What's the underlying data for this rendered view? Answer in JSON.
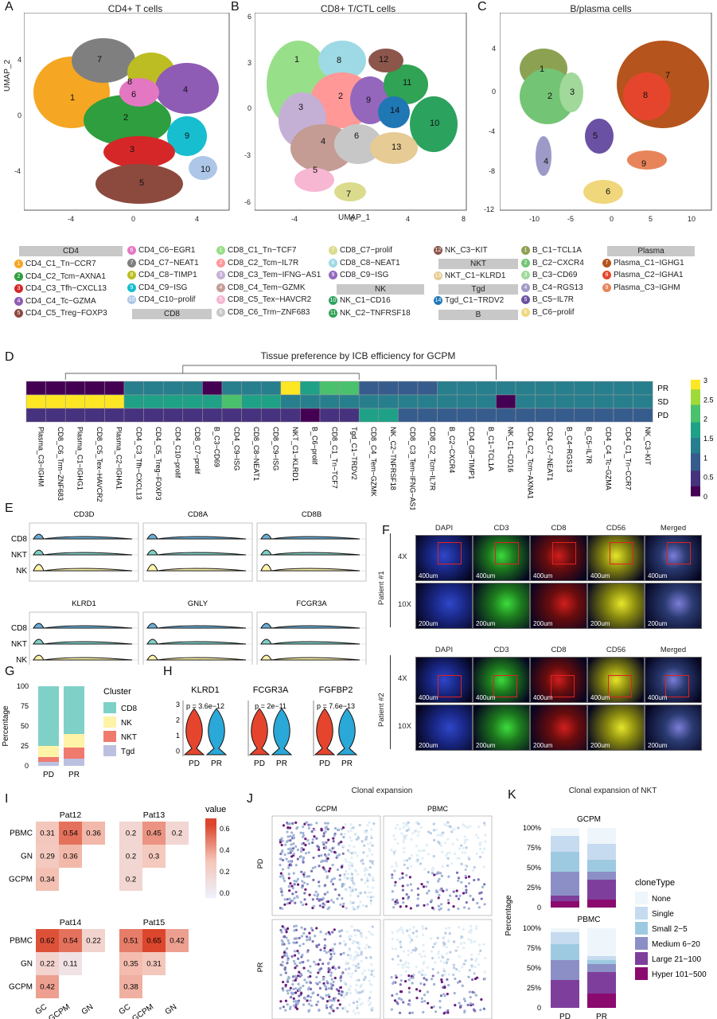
{
  "panels": {
    "A": {
      "label": "A",
      "title": "CD4+ T cells",
      "ylabel": "UMAP_2",
      "xticks": [
        "-4",
        "0",
        "4"
      ],
      "yticks": [
        "4",
        "0",
        "-4"
      ],
      "clusters": [
        "1",
        "2",
        "3",
        "4",
        "5",
        "6",
        "7",
        "8",
        "9",
        "10"
      ]
    },
    "B": {
      "label": "B",
      "title": "CD8+ T/CTL cells",
      "xlabel": "UMAP_1",
      "xticks": [
        "-4",
        "0",
        "4",
        "8"
      ],
      "yticks": [
        "6",
        "3",
        "0",
        "-3",
        "-6"
      ],
      "clusters": [
        "1",
        "2",
        "3",
        "4",
        "5",
        "6",
        "7",
        "8",
        "9",
        "10",
        "11",
        "12",
        "13",
        "14"
      ]
    },
    "C": {
      "label": "C",
      "title": "B/plasma cells",
      "xticks": [
        "-10",
        "-5",
        "0",
        "5",
        "10"
      ],
      "yticks": [
        "4",
        "0",
        "-4",
        "-8",
        "-12"
      ],
      "clusters": [
        "1",
        "2",
        "3",
        "4",
        "5",
        "6",
        "7",
        "8",
        "9"
      ]
    }
  },
  "legend": {
    "groups": [
      {
        "header": "CD4",
        "items": [
          {
            "n": "1",
            "label": "CD4_C1_Tn−CCR7",
            "color": "#f5a623"
          },
          {
            "n": "2",
            "label": "CD4_C2_Tcm−AXNA1",
            "color": "#2e9e3e"
          },
          {
            "n": "3",
            "label": "CD4_C3_Tfh−CXCL13",
            "color": "#d62728"
          },
          {
            "n": "4",
            "label": "CD4_C4_Tc−GZMA",
            "color": "#8e5bb5"
          },
          {
            "n": "5",
            "label": "CD4_C5_Treg−FOXP3",
            "color": "#8c4a3f"
          }
        ]
      },
      {
        "header": "",
        "items": [
          {
            "n": "6",
            "label": "CD4_C6−EGR1",
            "color": "#e377c2"
          },
          {
            "n": "7",
            "label": "CD4_C7−NEAT1",
            "color": "#7f7f7f"
          },
          {
            "n": "8",
            "label": "CD4_C8−TIMP1",
            "color": "#bcbd22"
          },
          {
            "n": "9",
            "label": "CD4_C9−ISG",
            "color": "#17becf"
          },
          {
            "n": "10",
            "label": "CD4_C10−prolif",
            "color": "#aec7e8"
          }
        ],
        "footer": "CD8"
      },
      {
        "header": "",
        "items": [
          {
            "n": "1",
            "label": "CD8_C1_Tn−TCF7",
            "color": "#98df8a"
          },
          {
            "n": "2",
            "label": "CD8_C2_Tcm−IL7R",
            "color": "#ff9896"
          },
          {
            "n": "3",
            "label": "CD8_C3_Tem−IFNG−AS1",
            "color": "#c5b0d5"
          },
          {
            "n": "4",
            "label": "CD8_C4_Tem−GZMK",
            "color": "#c49c94"
          },
          {
            "n": "5",
            "label": "CD8_C5_Tex−HAVCR2",
            "color": "#f7b6d2"
          },
          {
            "n": "6",
            "label": "CD8_C6_Trm−ZNF683",
            "color": "#c7c7c7"
          }
        ]
      },
      {
        "header": "",
        "items": [
          {
            "n": "7",
            "label": "CD8_C7−prolif",
            "color": "#dbdb8d"
          },
          {
            "n": "8",
            "label": "CD8_C8−NEAT1",
            "color": "#9edae5"
          },
          {
            "n": "9",
            "label": "CD8_C9−ISG",
            "color": "#9467bd"
          }
        ],
        "footer": "NK",
        "after": [
          {
            "n": "10",
            "label": "NK_C1−CD16",
            "color": "#2ca25f"
          },
          {
            "n": "11",
            "label": "NK_C2−TNFRSF18",
            "color": "#31a354"
          }
        ]
      },
      {
        "header": "",
        "items": [
          {
            "n": "12",
            "label": "NK_C3−KIT",
            "color": "#8c564b"
          }
        ],
        "mid": "NKT",
        "mid_items": [
          {
            "n": "13",
            "label": "NKT_C1−KLRD1",
            "color": "#e7cb94"
          }
        ],
        "mid2": "Tgd",
        "mid2_items": [
          {
            "n": "14",
            "label": "Tgd_C1−TRDV2",
            "color": "#1f77b4"
          }
        ],
        "footer": "B"
      },
      {
        "header": "",
        "items": [
          {
            "n": "1",
            "label": "B_C1−TCL1A",
            "color": "#8ca252"
          },
          {
            "n": "2",
            "label": "B_C2−CXCR4",
            "color": "#74c476"
          },
          {
            "n": "3",
            "label": "B_C3−CD69",
            "color": "#a1d99b"
          },
          {
            "n": "4",
            "label": "B_C4−RGS13",
            "color": "#9e9ac8"
          },
          {
            "n": "5",
            "label": "B_C5−IL7R",
            "color": "#6a51a3"
          },
          {
            "n": "6",
            "label": "B_C6−prolif",
            "color": "#f0d77b"
          }
        ]
      },
      {
        "header": "Plasma",
        "items": [
          {
            "n": "7",
            "label": "Plasma_C1−IGHG1",
            "color": "#b5541c"
          },
          {
            "n": "8",
            "label": "Plasma_C2−IGHA1",
            "color": "#e6452d"
          },
          {
            "n": "9",
            "label": "Plasma_C3−IGHM",
            "color": "#e8845a"
          }
        ]
      }
    ]
  },
  "panelD": {
    "label": "D",
    "title": "Tissue preference by ICB efficiency for GCPM",
    "rows": [
      "PR",
      "SD",
      "PD"
    ],
    "columns": [
      "Plasma_C3−IGHM",
      "CD8_C6_Trm−ZNF683",
      "Plasma_C1−IGHG1",
      "CD8_C5_Tex−HAVCR2",
      "Plasma_C2−IGHA1",
      "CD4_C3_Tfh−CXCL13",
      "CD4_C5_Treg−FOXP3",
      "CD4_C10−prolif",
      "CD8_C7−prolif",
      "B_C3−CD69",
      "CD4_C9−ISG",
      "CD8_C8−NEAT1",
      "CD8_C9−ISG",
      "NKT_C1−KLRD1",
      "B_C6−prolif",
      "CD8_C1_Tn−TCF7",
      "Tgd_C1−TRDV2",
      "CD8_C4_Tem−GZMK",
      "NK_C2−TNFRSF18",
      "CD8_C3_Tem−IFNG−AS1",
      "CD8_C2_Tcm−IL7R",
      "B_C2−CXCR4",
      "CD4_C8−TIMP1",
      "B_C1−TCL1A",
      "NK_C1−CD16",
      "CD4_C2_Tcm−AXNA1",
      "CD4_C7−NEAT1",
      "B_C4−RGS13",
      "B_C5−IL7R",
      "CD4_C4_Tc−GZMA",
      "CD4_C1_Tn−CCR7",
      "NK_C3−KIT"
    ],
    "values": [
      [
        0.1,
        0.1,
        0.1,
        0.1,
        0.1,
        1.3,
        1.3,
        1.3,
        1.3,
        0.1,
        1.3,
        1.3,
        1.3,
        3.0,
        1.7,
        2.0,
        2.0,
        1.0,
        1.0,
        1.0,
        1.0,
        1.2,
        1.2,
        1.2,
        1.2,
        1.3,
        1.3,
        1.3,
        1.3,
        1.3,
        1.3,
        1.3
      ],
      [
        3.0,
        3.0,
        3.0,
        3.0,
        3.0,
        1.5,
        1.5,
        1.5,
        1.5,
        1.7,
        2.3,
        1.7,
        1.7,
        1.2,
        1.2,
        1.2,
        1.2,
        1.2,
        1.2,
        1.2,
        1.2,
        1.2,
        1.2,
        1.2,
        0.1,
        1.2,
        1.2,
        1.2,
        1.2,
        1.2,
        1.2,
        1.2
      ],
      [
        0.6,
        0.6,
        0.6,
        0.6,
        0.6,
        0.6,
        0.6,
        0.6,
        0.6,
        0.6,
        0.6,
        0.6,
        0.6,
        0.6,
        0.1,
        0.6,
        0.6,
        1.7,
        1.7,
        0.8,
        0.8,
        0.8,
        0.8,
        0.8,
        0.8,
        0.8,
        0.8,
        0.8,
        0.8,
        0.8,
        0.8,
        0.8
      ]
    ],
    "colorbar_ticks": [
      "3",
      "2.5",
      "2",
      "1.5",
      "1",
      "0.5",
      "0"
    ]
  },
  "panelE": {
    "label": "E",
    "genes_top": [
      "CD3D",
      "CD8A",
      "CD8B"
    ],
    "genes_bottom": [
      "KLRD1",
      "GNLY",
      "FCGR3A"
    ],
    "groups": [
      "CD8",
      "NKT",
      "NK"
    ]
  },
  "panelF": {
    "label": "F",
    "channels": [
      "DAPI",
      "CD3",
      "CD8",
      "CD56",
      "Merged"
    ],
    "patients": [
      "Patient #1",
      "Patient #2"
    ],
    "mags": [
      "4X",
      "10X"
    ],
    "scales": [
      "400um",
      "200um"
    ]
  },
  "panelG": {
    "label": "G",
    "chart_data": {
      "type": "bar",
      "categories": [
        "PD",
        "PR"
      ],
      "series": [
        {
          "name": "CD8",
          "values": [
            75,
            60
          ]
        },
        {
          "name": "NK",
          "values": [
            14,
            17
          ]
        },
        {
          "name": "NKT",
          "values": [
            6,
            14
          ]
        },
        {
          "name": "Tgd",
          "values": [
            5,
            9
          ]
        }
      ],
      "ylabel": "Percentage",
      "legend_title": "Cluster",
      "ylim": [
        0,
        100
      ],
      "yticks": [
        "100",
        "75",
        "50",
        "25",
        "0"
      ]
    },
    "colors": {
      "CD8": "#7fd1c7",
      "NK": "#fff3a8",
      "NKT": "#f07a6e",
      "Tgd": "#bcc0e0"
    }
  },
  "panelH": {
    "label": "H",
    "genes": [
      {
        "name": "KLRD1",
        "p": "p = 3.6e−12"
      },
      {
        "name": "FCGR3A",
        "p": "p = 2e−11"
      },
      {
        "name": "FGFBP2",
        "p": "p = 7.6e−13"
      }
    ],
    "groups": [
      "PD",
      "PR"
    ],
    "yticks": [
      "3",
      "2",
      "1",
      "0"
    ]
  },
  "panelI": {
    "label": "I",
    "legend_title": "value",
    "legend_ticks": [
      "0.6",
      "0.4",
      "0.2",
      "0.0"
    ],
    "rows": [
      "PBMC",
      "GN",
      "GCPM"
    ],
    "cols": [
      "GC",
      "GCPM",
      "GN"
    ],
    "mats": [
      {
        "title": "Pat12",
        "cells": [
          [
            0.31,
            0.54,
            0.36
          ],
          [
            0.29,
            0.36,
            null
          ],
          [
            0.34,
            null,
            null
          ]
        ]
      },
      {
        "title": "Pat13",
        "cells": [
          [
            0.2,
            0.45,
            0.2
          ],
          [
            0.2,
            0.3,
            null
          ],
          [
            0.2,
            null,
            null
          ]
        ]
      },
      {
        "title": "Pat14",
        "cells": [
          [
            0.62,
            0.54,
            0.22
          ],
          [
            0.22,
            0.11,
            null
          ],
          [
            0.42,
            null,
            null
          ]
        ]
      },
      {
        "title": "Pat15",
        "cells": [
          [
            0.51,
            0.65,
            0.42
          ],
          [
            0.35,
            0.31,
            null
          ],
          [
            0.38,
            null,
            null
          ]
        ]
      }
    ]
  },
  "panelJ": {
    "label": "J",
    "title": "Clonal expansion",
    "cols": [
      "GCPM",
      "PBMC"
    ],
    "rows": [
      "PD",
      "PR"
    ]
  },
  "panelK": {
    "label": "K",
    "title": "Clonal expansion of NKT",
    "subtitles": [
      "GCPM",
      "PBMC"
    ],
    "ylabel": "Percentage",
    "yticks": [
      "100%",
      "75%",
      "50%",
      "25%",
      "0"
    ],
    "categories": [
      "PD",
      "PR"
    ],
    "legend_title": "cloneType",
    "legend": [
      "None",
      "Single",
      "Small 2−5",
      "Medium 6−20",
      "Large 21−100",
      "Hyper 101−500"
    ],
    "colors": [
      "#eef6fb",
      "#c6dbef",
      "#9ecae1",
      "#8c8fc6",
      "#7e3f9c",
      "#8b0a6e"
    ],
    "chart_data": [
      {
        "type": "bar",
        "title": "GCPM",
        "categories": [
          "PD",
          "PR"
        ],
        "series": [
          {
            "name": "None",
            "values": [
              10,
              20
            ]
          },
          {
            "name": "Single",
            "values": [
              20,
              20
            ]
          },
          {
            "name": "Small 2−5",
            "values": [
              25,
              15
            ]
          },
          {
            "name": "Medium 6−20",
            "values": [
              30,
              10
            ]
          },
          {
            "name": "Large 21−100",
            "values": [
              7,
              25
            ]
          },
          {
            "name": "Hyper 101−500",
            "values": [
              8,
              10
            ]
          }
        ]
      },
      {
        "type": "bar",
        "title": "PBMC",
        "categories": [
          "PD",
          "PR"
        ],
        "series": [
          {
            "name": "None",
            "values": [
              5,
              35
            ]
          },
          {
            "name": "Single",
            "values": [
              15,
              5
            ]
          },
          {
            "name": "Small 2−5",
            "values": [
              20,
              5
            ]
          },
          {
            "name": "Medium 6−20",
            "values": [
              25,
              10
            ]
          },
          {
            "name": "Large 21−100",
            "values": [
              35,
              27
            ]
          },
          {
            "name": "Hyper 101−500",
            "values": [
              0,
              18
            ]
          }
        ]
      }
    ]
  }
}
